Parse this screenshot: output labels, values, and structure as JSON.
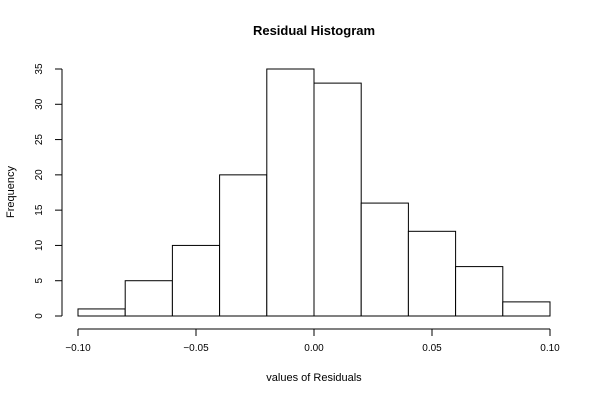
{
  "chart_data": {
    "type": "bar",
    "title": "Residual Histogram",
    "xlabel": "values of Residuals",
    "ylabel": "Frequency",
    "bin_edges": [
      -0.1,
      -0.08,
      -0.06,
      -0.04,
      -0.02,
      0.0,
      0.02,
      0.04,
      0.06,
      0.08,
      0.1
    ],
    "values": [
      1,
      5,
      10,
      20,
      35,
      33,
      16,
      12,
      7,
      2
    ],
    "xlim": [
      -0.1,
      0.1
    ],
    "ylim": [
      0,
      35
    ],
    "x_ticks": [
      -0.1,
      -0.05,
      0.0,
      0.05,
      0.1
    ],
    "x_tick_labels": [
      "−0.10",
      "−0.05",
      "0.00",
      "0.05",
      "0.10"
    ],
    "y_ticks": [
      0,
      5,
      10,
      15,
      20,
      25,
      30,
      35
    ],
    "y_tick_labels": [
      "0",
      "5",
      "10",
      "15",
      "20",
      "25",
      "30",
      "35"
    ],
    "grid": false,
    "bar_fill": "#ffffff",
    "bar_stroke": "#000000"
  }
}
